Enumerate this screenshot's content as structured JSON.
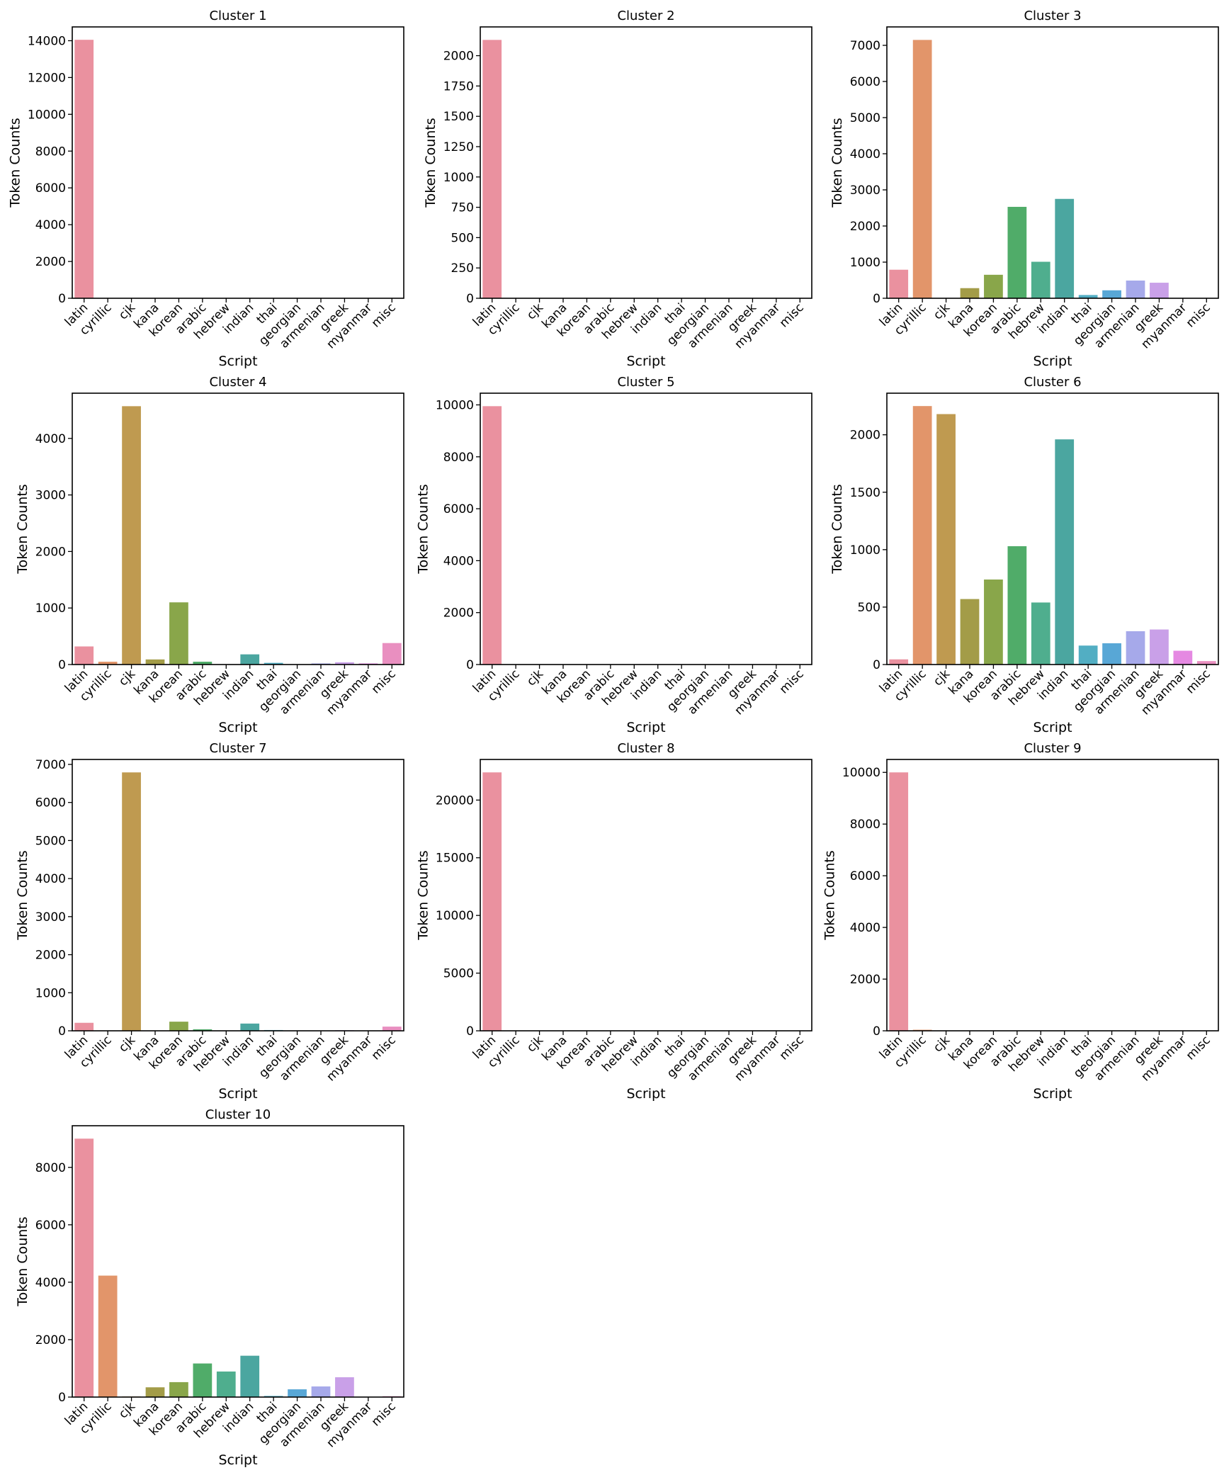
{
  "chart_data": [
    {
      "type": "bar",
      "title": "Cluster 1",
      "xlabel": "Script",
      "ylabel": "Token Counts",
      "categories": [
        "latin",
        "cyrillic",
        "cjk",
        "kana",
        "korean",
        "arabic",
        "hebrew",
        "indian",
        "thai",
        "georgian",
        "armenian",
        "greek",
        "myanmar",
        "misc"
      ],
      "values": [
        14050,
        0,
        0,
        0,
        0,
        0,
        0,
        0,
        0,
        0,
        0,
        0,
        0,
        0
      ],
      "ylim": [
        0,
        14750
      ],
      "yticks": [
        0,
        2000,
        4000,
        6000,
        8000,
        10000,
        12000,
        14000
      ]
    },
    {
      "type": "bar",
      "title": "Cluster 2",
      "xlabel": "Script",
      "ylabel": "Token Counts",
      "categories": [
        "latin",
        "cyrillic",
        "cjk",
        "kana",
        "korean",
        "arabic",
        "hebrew",
        "indian",
        "thai",
        "georgian",
        "armenian",
        "greek",
        "myanmar",
        "misc"
      ],
      "values": [
        2130,
        0,
        0,
        0,
        0,
        0,
        0,
        0,
        0,
        0,
        0,
        0,
        0,
        0
      ],
      "ylim": [
        0,
        2237
      ],
      "yticks": [
        0,
        250,
        500,
        750,
        1000,
        1250,
        1500,
        1750,
        2000
      ]
    },
    {
      "type": "bar",
      "title": "Cluster 3",
      "xlabel": "Script",
      "ylabel": "Token Counts",
      "categories": [
        "latin",
        "cyrillic",
        "cjk",
        "kana",
        "korean",
        "arabic",
        "hebrew",
        "indian",
        "thai",
        "georgian",
        "armenian",
        "greek",
        "myanmar",
        "misc"
      ],
      "values": [
        790,
        7150,
        0,
        280,
        650,
        2530,
        1010,
        2750,
        90,
        220,
        490,
        430,
        0,
        0
      ],
      "ylim": [
        0,
        7510
      ],
      "yticks": [
        0,
        1000,
        2000,
        3000,
        4000,
        5000,
        6000,
        7000
      ]
    },
    {
      "type": "bar",
      "title": "Cluster 4",
      "xlabel": "Script",
      "ylabel": "Token Counts",
      "categories": [
        "latin",
        "cyrillic",
        "cjk",
        "kana",
        "korean",
        "arabic",
        "hebrew",
        "indian",
        "thai",
        "georgian",
        "armenian",
        "greek",
        "myanmar",
        "misc"
      ],
      "values": [
        320,
        50,
        4570,
        90,
        1100,
        50,
        0,
        180,
        30,
        0,
        20,
        40,
        20,
        380
      ],
      "ylim": [
        0,
        4800
      ],
      "yticks": [
        0,
        1000,
        2000,
        3000,
        4000
      ]
    },
    {
      "type": "bar",
      "title": "Cluster 5",
      "xlabel": "Script",
      "ylabel": "Token Counts",
      "categories": [
        "latin",
        "cyrillic",
        "cjk",
        "kana",
        "korean",
        "arabic",
        "hebrew",
        "indian",
        "thai",
        "georgian",
        "armenian",
        "greek",
        "myanmar",
        "misc"
      ],
      "values": [
        9950,
        0,
        0,
        0,
        0,
        0,
        0,
        0,
        0,
        0,
        0,
        0,
        0,
        0
      ],
      "ylim": [
        0,
        10450
      ],
      "yticks": [
        0,
        2000,
        4000,
        6000,
        8000,
        10000
      ]
    },
    {
      "type": "bar",
      "title": "Cluster 6",
      "xlabel": "Script",
      "ylabel": "Token Counts",
      "categories": [
        "latin",
        "cyrillic",
        "cjk",
        "kana",
        "korean",
        "arabic",
        "hebrew",
        "indian",
        "thai",
        "georgian",
        "armenian",
        "greek",
        "myanmar",
        "misc"
      ],
      "values": [
        45,
        2250,
        2180,
        570,
        740,
        1030,
        540,
        1960,
        165,
        185,
        290,
        305,
        120,
        30
      ],
      "ylim": [
        0,
        2362
      ],
      "yticks": [
        0,
        500,
        1000,
        1500,
        2000
      ]
    },
    {
      "type": "bar",
      "title": "Cluster 7",
      "xlabel": "Script",
      "ylabel": "Token Counts",
      "categories": [
        "latin",
        "cyrillic",
        "cjk",
        "kana",
        "korean",
        "arabic",
        "hebrew",
        "indian",
        "thai",
        "georgian",
        "armenian",
        "greek",
        "myanmar",
        "misc"
      ],
      "values": [
        210,
        0,
        6790,
        0,
        240,
        40,
        0,
        190,
        20,
        0,
        0,
        15,
        0,
        110
      ],
      "ylim": [
        0,
        7130
      ],
      "yticks": [
        0,
        1000,
        2000,
        3000,
        4000,
        5000,
        6000,
        7000
      ]
    },
    {
      "type": "bar",
      "title": "Cluster 8",
      "xlabel": "Script",
      "ylabel": "Token Counts",
      "categories": [
        "latin",
        "cyrillic",
        "cjk",
        "kana",
        "korean",
        "arabic",
        "hebrew",
        "indian",
        "thai",
        "georgian",
        "armenian",
        "greek",
        "myanmar",
        "misc"
      ],
      "values": [
        22400,
        0,
        0,
        0,
        0,
        0,
        0,
        0,
        0,
        0,
        0,
        0,
        0,
        0
      ],
      "ylim": [
        0,
        23520
      ],
      "yticks": [
        0,
        5000,
        10000,
        15000,
        20000
      ]
    },
    {
      "type": "bar",
      "title": "Cluster 9",
      "xlabel": "Script",
      "ylabel": "Token Counts",
      "categories": [
        "latin",
        "cyrillic",
        "cjk",
        "kana",
        "korean",
        "arabic",
        "hebrew",
        "indian",
        "thai",
        "georgian",
        "armenian",
        "greek",
        "myanmar",
        "misc"
      ],
      "values": [
        10000,
        40,
        0,
        0,
        0,
        0,
        0,
        0,
        0,
        0,
        0,
        0,
        0,
        0
      ],
      "ylim": [
        0,
        10500
      ],
      "yticks": [
        0,
        2000,
        4000,
        6000,
        8000,
        10000
      ]
    },
    {
      "type": "bar",
      "title": "Cluster 10",
      "xlabel": "Script",
      "ylabel": "Token Counts",
      "categories": [
        "latin",
        "cyrillic",
        "cjk",
        "kana",
        "korean",
        "arabic",
        "hebrew",
        "indian",
        "thai",
        "georgian",
        "armenian",
        "greek",
        "myanmar",
        "misc"
      ],
      "values": [
        9000,
        4230,
        20,
        340,
        520,
        1170,
        890,
        1440,
        40,
        270,
        370,
        690,
        0,
        30
      ],
      "ylim": [
        0,
        9450
      ],
      "yticks": [
        0,
        2000,
        4000,
        6000,
        8000
      ]
    }
  ],
  "colors": {
    "latin": "#ea919f",
    "cyrillic": "#e2956a",
    "cjk": "#bf9a50",
    "kana": "#a39c48",
    "korean": "#89a64a",
    "arabic": "#50ac69",
    "hebrew": "#4fae8e",
    "indian": "#4ba6a0",
    "thai": "#52aec3",
    "georgian": "#58a7d6",
    "armenian": "#a6a9ea",
    "greek": "#c9a0e8",
    "myanmar": "#e589e2",
    "misc": "#e98fc0"
  }
}
